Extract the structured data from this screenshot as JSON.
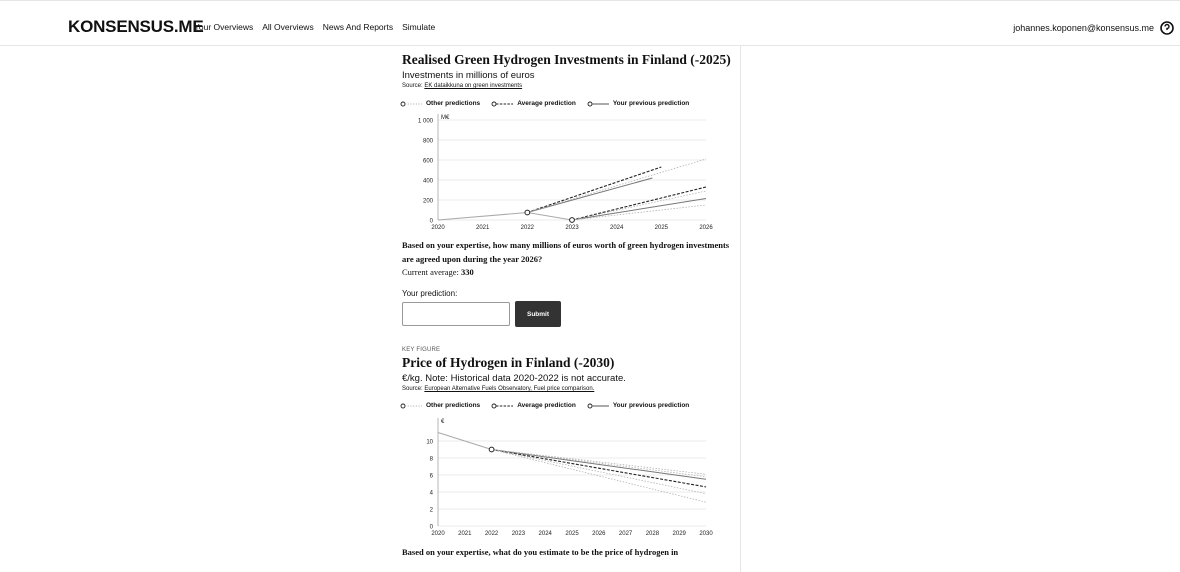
{
  "header": {
    "brand": "KONSENSUS.ME",
    "nav": [
      "Your Overviews",
      "All Overviews",
      "News And Reports",
      "Simulate"
    ],
    "user_email": "johannes.koponen@konsensus.me"
  },
  "legend": {
    "other": "Other predictions",
    "average": "Average prediction",
    "previous": "Your previous prediction"
  },
  "card1": {
    "title": "Realised Green Hydrogen Investments in Finland (-2025)",
    "subtitle": "Investments in millions of euros",
    "source_prefix": "Source: ",
    "source_link": "EK dataikkuna on green investments",
    "question": "Based on your expertise, how many millions of euros worth of green hydrogen investments are agreed upon during the year 2026?",
    "avg_label": "Current average: ",
    "avg_value": "330",
    "prediction_label": "Your prediction:",
    "prediction_value": "",
    "submit_label": "Submit"
  },
  "card2": {
    "kicker": "KEY FIGURE",
    "title": "Price of Hydrogen in Finland (-2030)",
    "subtitle": "€/kg. Note: Historical data 2020-2022 is not accurate.",
    "source_prefix": "Source: ",
    "source_link": "European Alternative Fuels Observatory, Fuel price comparison.",
    "question_cut": "Based on your expertise, what do you estimate to be the price of hydrogen in"
  },
  "chart_data": [
    {
      "type": "line",
      "unit_label": "M€",
      "xlim": [
        2020,
        2026
      ],
      "ylim": [
        0,
        1000
      ],
      "x_ticks": [
        "2020",
        "2021",
        "2022",
        "2023",
        "2024",
        "2025",
        "2026"
      ],
      "y_ticks": [
        {
          "v": 0,
          "label": "0"
        },
        {
          "v": 200,
          "label": "200"
        },
        {
          "v": 400,
          "label": "400"
        },
        {
          "v": 600,
          "label": "600"
        },
        {
          "v": 800,
          "label": "800"
        },
        {
          "v": 1000,
          "label": "1 000"
        }
      ],
      "grid": true,
      "series": [
        {
          "kind": "history",
          "points": [
            [
              2020,
              0
            ],
            [
              2022,
              75
            ],
            [
              2023,
              0
            ]
          ]
        },
        {
          "kind": "average",
          "points": [
            [
              2022,
              75
            ],
            [
              2025,
              530
            ]
          ]
        },
        {
          "kind": "previous",
          "points": [
            [
              2022,
              75
            ],
            [
              2024.8,
              420
            ]
          ]
        },
        {
          "kind": "average",
          "points": [
            [
              2023,
              0
            ],
            [
              2026,
              330
            ]
          ]
        },
        {
          "kind": "previous",
          "points": [
            [
              2023,
              0
            ],
            [
              2026,
              215
            ]
          ]
        },
        {
          "kind": "other",
          "points": [
            [
              2022,
              75
            ],
            [
              2026,
              610
            ]
          ]
        },
        {
          "kind": "other",
          "points": [
            [
              2023,
              0
            ],
            [
              2026,
              150
            ]
          ]
        },
        {
          "kind": "other",
          "points": [
            [
              2023,
              0
            ],
            [
              2026,
              290
            ]
          ]
        }
      ],
      "markers": [
        [
          2022,
          75
        ],
        [
          2023,
          0
        ]
      ]
    },
    {
      "type": "line",
      "unit_label": "€",
      "xlim": [
        2020,
        2030
      ],
      "ylim": [
        0,
        12
      ],
      "x_ticks": [
        "2020",
        "2021",
        "2022",
        "2023",
        "2024",
        "2025",
        "2026",
        "2027",
        "2028",
        "2029",
        "2030"
      ],
      "y_ticks": [
        {
          "v": 0,
          "label": "0"
        },
        {
          "v": 2,
          "label": "2"
        },
        {
          "v": 4,
          "label": "4"
        },
        {
          "v": 6,
          "label": "6"
        },
        {
          "v": 8,
          "label": "8"
        },
        {
          "v": 10,
          "label": "10"
        }
      ],
      "grid": true,
      "series": [
        {
          "kind": "history",
          "points": [
            [
              2020,
              11
            ],
            [
              2022,
              9
            ]
          ]
        },
        {
          "kind": "average",
          "points": [
            [
              2022,
              9
            ],
            [
              2030,
              4.6
            ]
          ]
        },
        {
          "kind": "previous",
          "points": [
            [
              2022,
              9
            ],
            [
              2030,
              5.5
            ]
          ]
        },
        {
          "kind": "other",
          "points": [
            [
              2022,
              9
            ],
            [
              2030,
              6.1
            ]
          ]
        },
        {
          "kind": "other",
          "points": [
            [
              2022,
              9
            ],
            [
              2030,
              5.8
            ]
          ]
        },
        {
          "kind": "other",
          "points": [
            [
              2022,
              9
            ],
            [
              2030,
              3.8
            ]
          ]
        },
        {
          "kind": "other",
          "points": [
            [
              2022,
              9
            ],
            [
              2030,
              2.8
            ]
          ]
        }
      ],
      "markers": [
        [
          2022,
          9
        ]
      ]
    }
  ]
}
